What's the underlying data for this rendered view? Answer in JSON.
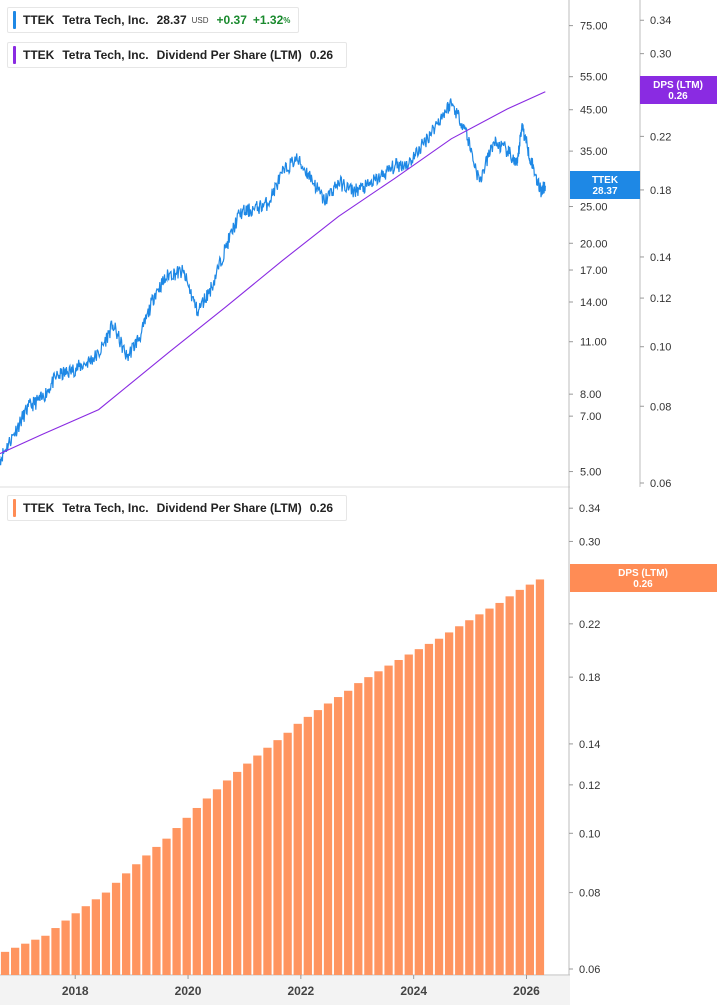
{
  "legend_top_price": {
    "ticker": "TTEK",
    "name": "Tetra Tech, Inc.",
    "price": "28.37",
    "currency": "USD",
    "change": "+0.37",
    "change_pct": "+1.32",
    "pct_sign": "%",
    "color": "#1e88e5"
  },
  "legend_top_dps": {
    "ticker": "TTEK",
    "name": "Tetra Tech, Inc.",
    "metric": "Dividend Per Share (LTM)",
    "value": "0.26",
    "color": "#8a2be2"
  },
  "legend_bottom_dps": {
    "ticker": "TTEK",
    "name": "Tetra Tech, Inc.",
    "metric": "Dividend Per Share (LTM)",
    "value": "0.26",
    "color": "#ff8c55"
  },
  "badges": {
    "price_label": "TTEK",
    "price_value": "28.37",
    "dps_label": "DPS (LTM)",
    "dps_value": "0.26",
    "dps_value_bottom": "0.26"
  },
  "chart_data": [
    {
      "type": "line",
      "panel": "top",
      "scale": "log",
      "x_range": [
        "2016-09",
        "2026-06"
      ],
      "series": [
        {
          "name": "TTEK",
          "axis": "price",
          "color": "#1e88e5",
          "points": [
            [
              "2016-09",
              5.4
            ],
            [
              "2016-12",
              6.3
            ],
            [
              "2017-03",
              7.4
            ],
            [
              "2017-06",
              7.8
            ],
            [
              "2017-09",
              8.9
            ],
            [
              "2017-12",
              9.2
            ],
            [
              "2018-03",
              9.6
            ],
            [
              "2018-06",
              10.2
            ],
            [
              "2018-09",
              12.2
            ],
            [
              "2018-12",
              10.0
            ],
            [
              "2019-03",
              11.5
            ],
            [
              "2019-06",
              14.8
            ],
            [
              "2019-09",
              16.6
            ],
            [
              "2019-12",
              16.8
            ],
            [
              "2020-03",
              13.2
            ],
            [
              "2020-06",
              15.3
            ],
            [
              "2020-09",
              19.5
            ],
            [
              "2020-12",
              24.0
            ],
            [
              "2021-03",
              24.6
            ],
            [
              "2021-06",
              25.5
            ],
            [
              "2021-09",
              30.5
            ],
            [
              "2021-12",
              33.5
            ],
            [
              "2022-03",
              30.0
            ],
            [
              "2022-06",
              25.8
            ],
            [
              "2022-09",
              29.0
            ],
            [
              "2022-12",
              27.5
            ],
            [
              "2023-03",
              28.2
            ],
            [
              "2023-06",
              30.0
            ],
            [
              "2023-09",
              32.0
            ],
            [
              "2023-12",
              32.5
            ],
            [
              "2024-03",
              36.5
            ],
            [
              "2024-06",
              41.5
            ],
            [
              "2024-09",
              47.0
            ],
            [
              "2024-12",
              40.0
            ],
            [
              "2025-03",
              29.0
            ],
            [
              "2025-06",
              37.0
            ],
            [
              "2025-09",
              35.0
            ],
            [
              "2025-11",
              32.0
            ],
            [
              "2025-12",
              41.0
            ],
            [
              "2026-02",
              33.0
            ],
            [
              "2026-04",
              27.5
            ],
            [
              "2026-05",
              28.37
            ]
          ]
        },
        {
          "name": "DPS (LTM)",
          "axis": "dps",
          "color": "#8a2be2",
          "points": [
            [
              "2016-09",
              0.067
            ],
            [
              "2017-06",
              0.072
            ],
            [
              "2018-06",
              0.079
            ],
            [
              "2019-09",
              0.098
            ],
            [
              "2020-09",
              0.116
            ],
            [
              "2021-09",
              0.138
            ],
            [
              "2022-09",
              0.163
            ],
            [
              "2023-09",
              0.188
            ],
            [
              "2024-09",
              0.218
            ],
            [
              "2025-09",
              0.244
            ],
            [
              "2026-05",
              0.26
            ]
          ]
        }
      ],
      "price_axis_ticks": [
        5,
        7,
        8,
        11,
        14,
        17,
        20,
        25,
        35,
        45,
        55,
        75
      ],
      "price_axis_labels": [
        "5.00",
        "7.00",
        "8.00",
        "11.00",
        "14.00",
        "17.00",
        "20.00",
        "25.00",
        "35.00",
        "45.00",
        "55.00",
        "75.00"
      ],
      "price_ylim": [
        4.75,
        85
      ],
      "dps_axis_ticks": [
        0.06,
        0.08,
        0.1,
        0.12,
        0.14,
        0.18,
        0.22,
        0.3,
        0.34
      ],
      "dps_axis_labels": [
        "0.06",
        "0.08",
        "0.10",
        "0.12",
        "0.14",
        "0.18",
        "0.22",
        "0.30",
        "0.34"
      ],
      "dps_ylim": [
        0.06,
        0.36
      ]
    },
    {
      "type": "bar",
      "panel": "bottom",
      "scale": "log",
      "series": [
        {
          "name": "Dividend Per Share (LTM)",
          "color": "#ff9560",
          "values": [
            0.064,
            0.065,
            0.066,
            0.067,
            0.068,
            0.07,
            0.072,
            0.074,
            0.076,
            0.078,
            0.08,
            0.083,
            0.086,
            0.089,
            0.092,
            0.095,
            0.098,
            0.102,
            0.106,
            0.11,
            0.114,
            0.118,
            0.122,
            0.126,
            0.13,
            0.134,
            0.138,
            0.142,
            0.146,
            0.151,
            0.155,
            0.159,
            0.163,
            0.167,
            0.171,
            0.176,
            0.18,
            0.184,
            0.188,
            0.192,
            0.196,
            0.2,
            0.204,
            0.208,
            0.213,
            0.218,
            0.223,
            0.228,
            0.233,
            0.238,
            0.244,
            0.25,
            0.255,
            0.26
          ]
        }
      ],
      "dps_axis_ticks": [
        0.06,
        0.08,
        0.1,
        0.12,
        0.14,
        0.18,
        0.22,
        0.3,
        0.34
      ],
      "dps_axis_labels": [
        "0.06",
        "0.08",
        "0.10",
        "0.12",
        "0.14",
        "0.18",
        "0.22",
        "0.30",
        "0.34"
      ],
      "dps_ylim": [
        0.06,
        0.36
      ],
      "x_ticks": [
        "2018",
        "2020",
        "2022",
        "2024",
        "2026"
      ],
      "xlim": [
        "2016-09",
        "2026-06"
      ]
    }
  ]
}
